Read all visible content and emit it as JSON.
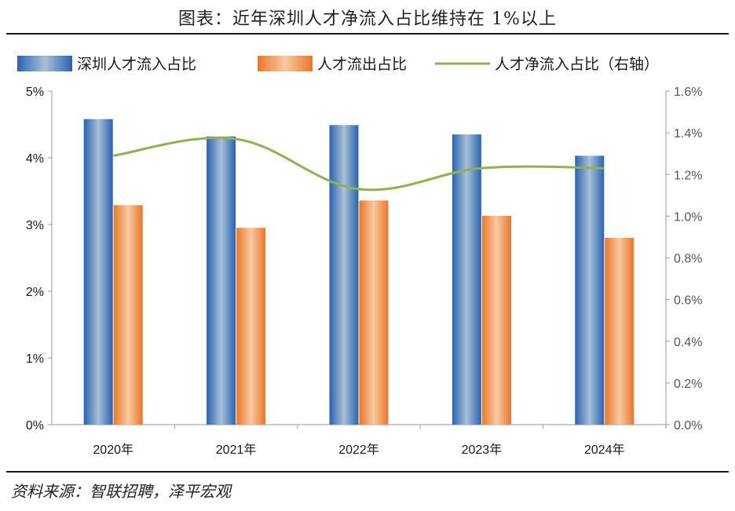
{
  "title": "图表：近年深圳人才净流入占比维持在 1%以上",
  "source": "资料来源：智联招聘，泽平宏观",
  "colors": {
    "inflow": "#3a74bd",
    "outflow": "#ef8a3a",
    "net": "#8db24e"
  },
  "chart_data": {
    "type": "bar",
    "categories": [
      "2020年",
      "2021年",
      "2022年",
      "2023年",
      "2024年"
    ],
    "series": [
      {
        "name": "深圳人才流入占比",
        "type": "bar",
        "axis": "left",
        "values": [
          4.58,
          4.32,
          4.49,
          4.35,
          4.03
        ]
      },
      {
        "name": "人才流出占比",
        "type": "bar",
        "axis": "left",
        "values": [
          3.29,
          2.95,
          3.36,
          3.13,
          2.8
        ]
      },
      {
        "name": "人才净流入占比（右轴）",
        "type": "line",
        "axis": "right",
        "values": [
          1.29,
          1.37,
          1.13,
          1.23,
          1.23
        ]
      }
    ],
    "ylim_left": [
      0,
      5
    ],
    "ylim_right": [
      0,
      1.6
    ],
    "yticks_left": [
      "0%",
      "1%",
      "2%",
      "3%",
      "4%",
      "5%"
    ],
    "yticks_right": [
      "0.0%",
      "0.2%",
      "0.4%",
      "0.6%",
      "0.8%",
      "1.0%",
      "1.2%",
      "1.4%",
      "1.6%"
    ],
    "legend": [
      "深圳人才流入占比",
      "人才流出占比",
      "人才净流入占比（右轴）"
    ],
    "legend_position": "top",
    "grid": false
  }
}
